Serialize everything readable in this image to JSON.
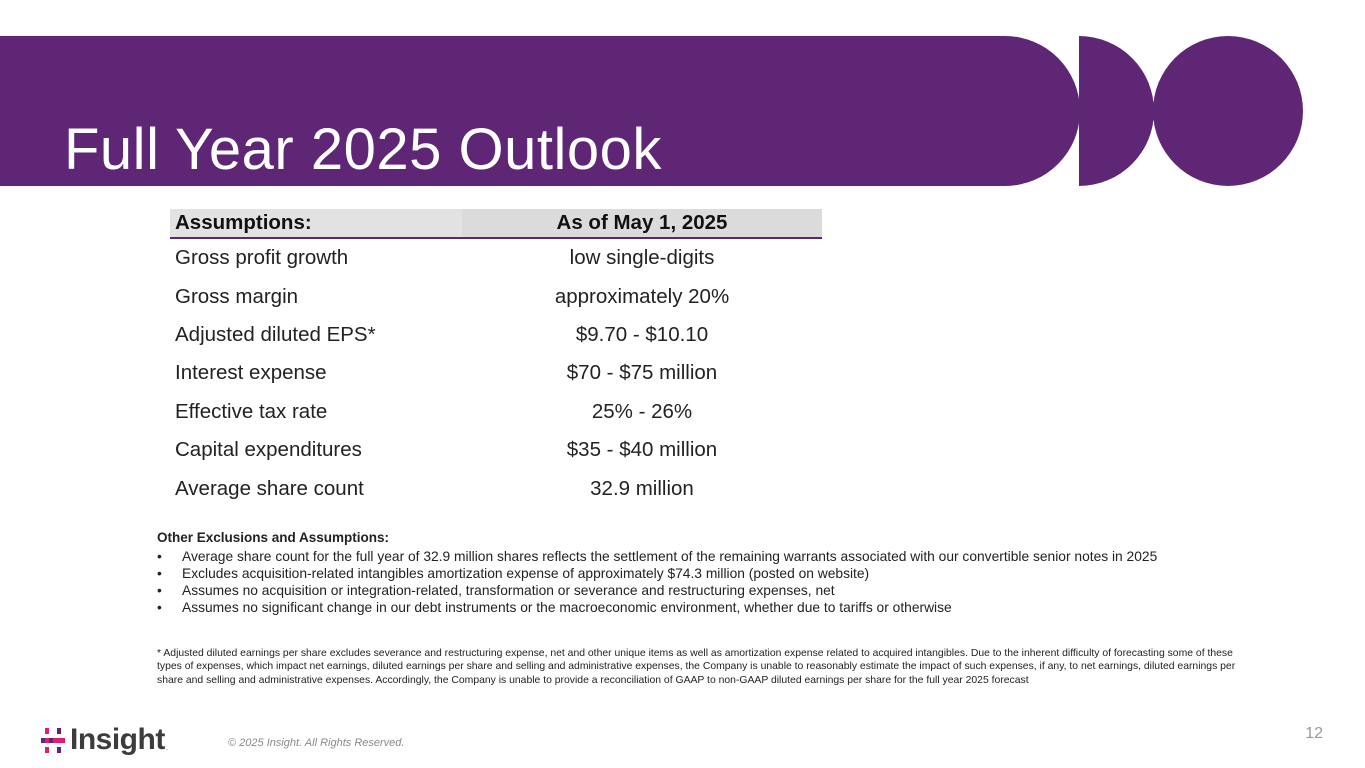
{
  "slide": {
    "title": "Full Year 2025 Outlook",
    "page_number": "12",
    "brand_color": "#5f2675"
  },
  "table": {
    "headers": [
      "Assumptions:",
      "As of May 1, 2025"
    ],
    "rows": [
      [
        "Gross profit growth",
        "low single-digits"
      ],
      [
        "Gross margin",
        "approximately 20%"
      ],
      [
        "Adjusted diluted EPS*",
        "$9.70 - $10.10"
      ],
      [
        "Interest expense",
        "$70 - $75 million"
      ],
      [
        "Effective tax rate",
        "25% - 26%"
      ],
      [
        "Capital expenditures",
        "$35 - $40 million"
      ],
      [
        "Average share count",
        "32.9 million"
      ]
    ]
  },
  "other": {
    "title": "Other Exclusions and Assumptions:",
    "bullet_char": "•",
    "bullets": [
      "Average share count for the full year of 32.9 million shares reflects the settlement of the remaining warrants associated with our convertible senior notes in 2025",
      "Excludes acquisition-related intangibles amortization expense of approximately $74.3 million (posted on website)",
      "Assumes no acquisition or integration-related, transformation or severance and restructuring expenses, net",
      "Assumes no significant change in our debt instruments or the macroeconomic environment, whether due to tariffs or otherwise"
    ]
  },
  "footnote": "* Adjusted diluted earnings per share excludes severance and restructuring expense, net and other unique items as well as amortization expense related to acquired intangibles. Due to the inherent difficulty of forecasting some of these types of expenses, which impact net earnings, diluted earnings per share and selling and administrative expenses, the Company is unable to reasonably estimate the impact of such expenses, if any, to net earnings, diluted earnings per share and selling and administrative expenses. Accordingly, the Company is unable to provide a reconciliation of GAAP to non-GAAP diluted earnings per share for the full year 2025 forecast",
  "footer": {
    "logo_text": "Insight",
    "logo_reg": ".",
    "copyright": "© 2025 Insight. All Rights Reserved.",
    "logo_icon": "insight-mark-icon"
  }
}
